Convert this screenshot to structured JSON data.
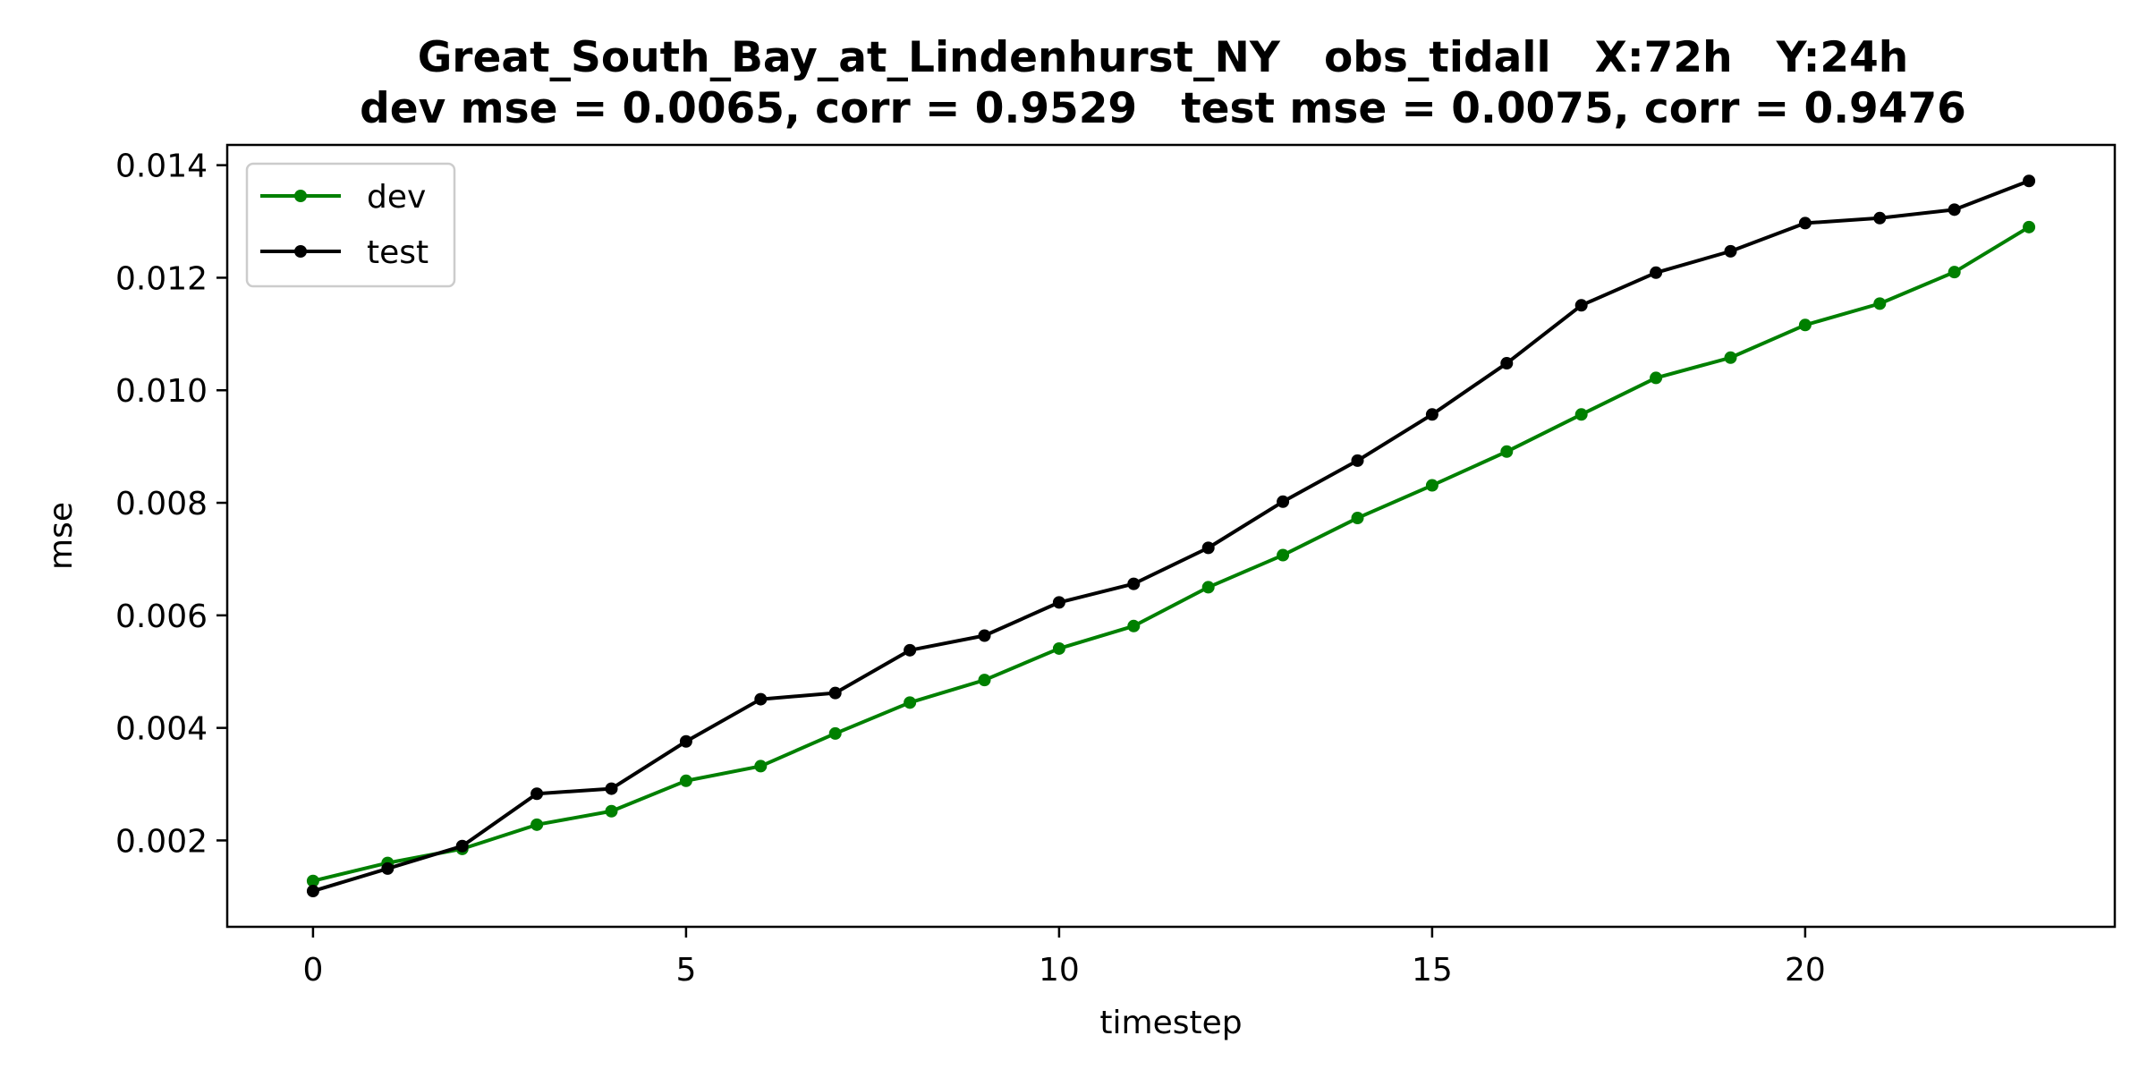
{
  "chart_data": {
    "type": "line",
    "title": "Great_South_Bay_at_Lindenhurst_NY   obs_tidall   X:72h   Y:24h",
    "subtitle": "dev mse = 0.0065, corr = 0.9529   test mse = 0.0075, corr = 0.9476",
    "xlabel": "timestep",
    "ylabel": "mse",
    "xlim": [
      -1.15,
      24.15
    ],
    "ylim": [
      0.000465,
      0.01436
    ],
    "xticks": [
      0,
      5,
      10,
      15,
      20
    ],
    "xtick_labels": [
      "0",
      "5",
      "10",
      "15",
      "20"
    ],
    "yticks": [
      0.002,
      0.004,
      0.006,
      0.008,
      0.01,
      0.012,
      0.014
    ],
    "ytick_labels": [
      "0.002",
      "0.004",
      "0.006",
      "0.008",
      "0.010",
      "0.012",
      "0.014"
    ],
    "grid": false,
    "legend_position": "top-left",
    "x": [
      0,
      1,
      2,
      3,
      4,
      5,
      6,
      7,
      8,
      9,
      10,
      11,
      12,
      13,
      14,
      15,
      16,
      17,
      18,
      19,
      20,
      21,
      22,
      23
    ],
    "series": [
      {
        "name": "dev",
        "color": "#008000",
        "values": [
          0.00128,
          0.0016,
          0.00185,
          0.00228,
          0.00252,
          0.00306,
          0.00332,
          0.0039,
          0.00445,
          0.00485,
          0.00541,
          0.00581,
          0.0065,
          0.00707,
          0.00773,
          0.00831,
          0.00891,
          0.00957,
          0.01022,
          0.01058,
          0.01116,
          0.01154,
          0.0121,
          0.0129
        ]
      },
      {
        "name": "test",
        "color": "#000000",
        "values": [
          0.0011,
          0.0015,
          0.0019,
          0.00283,
          0.00292,
          0.00376,
          0.00451,
          0.00462,
          0.00538,
          0.00564,
          0.00623,
          0.00656,
          0.0072,
          0.00802,
          0.00875,
          0.00957,
          0.01048,
          0.01151,
          0.01209,
          0.01247,
          0.01297,
          0.01306,
          0.01321,
          0.01372
        ]
      }
    ]
  }
}
